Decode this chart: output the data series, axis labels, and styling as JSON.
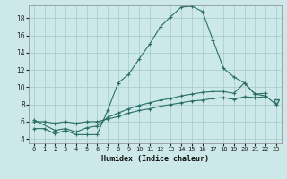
{
  "title": "",
  "xlabel": "Humidex (Indice chaleur)",
  "bg_color": "#cce8e8",
  "grid_color": "#aacfcf",
  "line_color": "#2a6e65",
  "xlim": [
    -0.5,
    23.5
  ],
  "ylim": [
    3.5,
    19.5
  ],
  "xticks": [
    0,
    1,
    2,
    3,
    4,
    5,
    6,
    7,
    8,
    9,
    10,
    11,
    12,
    13,
    14,
    15,
    16,
    17,
    18,
    19,
    20,
    21,
    22,
    23
  ],
  "yticks": [
    4,
    6,
    8,
    10,
    12,
    14,
    16,
    18
  ],
  "line1_x": [
    0,
    1,
    2,
    3,
    4,
    5,
    6,
    7,
    8,
    9,
    10,
    11,
    12,
    13,
    14,
    15,
    16,
    17,
    18,
    19,
    20,
    21,
    22,
    23
  ],
  "line1_y": [
    5.2,
    5.2,
    4.6,
    5.0,
    4.5,
    4.5,
    4.5,
    7.3,
    10.5,
    11.5,
    13.3,
    15.0,
    17.0,
    18.2,
    19.3,
    19.4,
    18.8,
    15.5,
    12.2,
    11.2,
    10.5,
    9.2,
    9.0,
    8.0
  ],
  "line2_x": [
    0,
    2,
    3,
    4,
    5,
    6,
    7,
    8,
    9,
    10,
    11,
    12,
    13,
    14,
    15,
    16,
    17,
    18,
    19,
    20,
    21,
    22
  ],
  "line2_y": [
    6.2,
    5.0,
    5.2,
    4.8,
    5.3,
    5.5,
    6.5,
    7.0,
    7.5,
    7.9,
    8.2,
    8.5,
    8.7,
    9.0,
    9.2,
    9.4,
    9.5,
    9.5,
    9.3,
    10.5,
    9.2,
    9.3
  ],
  "line3_x": [
    0,
    1,
    2,
    3,
    4,
    5,
    6,
    7,
    8,
    9,
    10,
    11,
    12,
    13,
    14,
    15,
    16,
    17,
    18,
    19,
    20,
    21,
    22
  ],
  "line3_y": [
    6.0,
    6.0,
    5.8,
    6.0,
    5.8,
    6.0,
    6.0,
    6.3,
    6.6,
    7.0,
    7.3,
    7.5,
    7.8,
    8.0,
    8.2,
    8.4,
    8.5,
    8.7,
    8.8,
    8.6,
    8.9,
    8.8,
    8.9
  ],
  "tri_x": 23,
  "tri_y": 8.3
}
